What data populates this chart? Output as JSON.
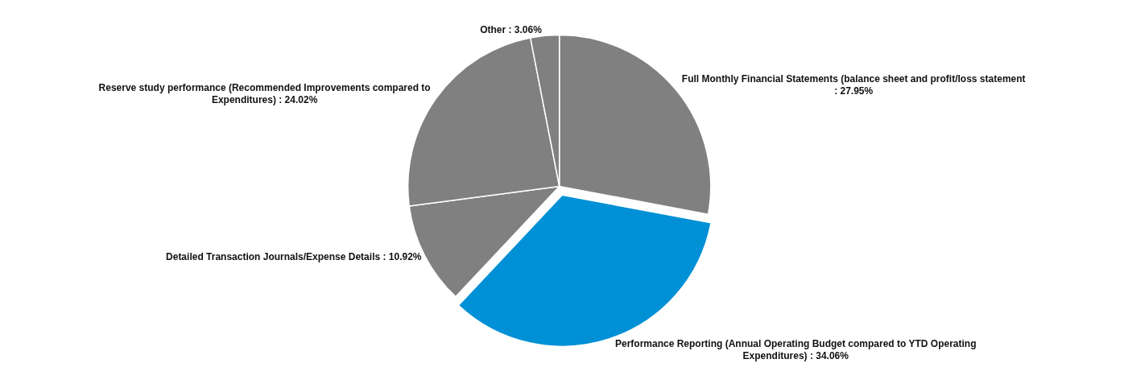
{
  "chart_data": {
    "type": "pie",
    "categories": [
      "Full Monthly Financial Statements (balance sheet and profit/loss statement",
      "Performance Reporting (Annual Operating Budget compared to YTD Operating Expenditures)",
      "Detailed Transaction Journals/Expense Details",
      "Reserve study performance (Recommended Improvements compared to Expenditures)",
      "Other"
    ],
    "values": [
      27.95,
      34.06,
      10.92,
      24.02,
      3.06
    ],
    "colors": [
      "#808080",
      "#0090d6",
      "#808080",
      "#808080",
      "#808080"
    ],
    "value_labels": [
      ": 27.95%",
      ": 34.06%",
      ": 10.92%",
      ": 24.02%",
      ": 3.06%"
    ],
    "legend": false
  }
}
